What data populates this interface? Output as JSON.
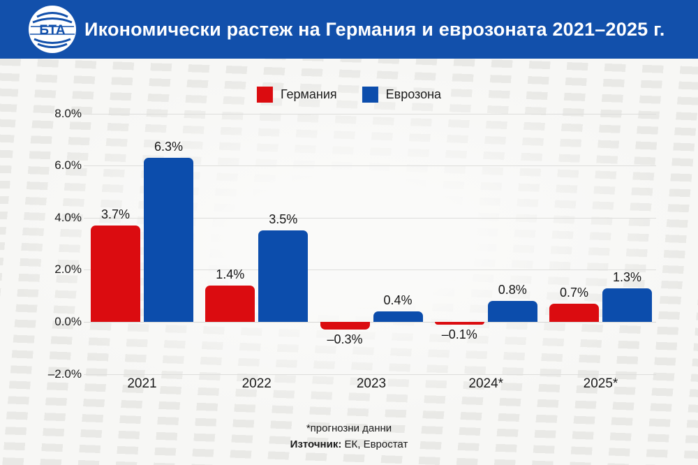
{
  "header": {
    "title": "Икономически растеж на Германия и еврозоната 2021–2025 г.",
    "logo_text": "БТА"
  },
  "legend": {
    "items": [
      {
        "label": "Германия",
        "color": "#db0c10"
      },
      {
        "label": "Еврозона",
        "color": "#0c4dac"
      }
    ]
  },
  "chart_data": {
    "type": "bar",
    "title": "Икономически растеж на Германия и еврозоната 2021–2025 г.",
    "categories": [
      "2021",
      "2022",
      "2023",
      "2024*",
      "2025*"
    ],
    "series": [
      {
        "name": "Германия",
        "color": "#db0c10",
        "values": [
          3.7,
          1.4,
          -0.3,
          -0.1,
          0.7
        ],
        "labels": [
          "3.7%",
          "1.4%",
          "–0.3%",
          "–0.1%",
          "0.7%"
        ]
      },
      {
        "name": "Еврозона",
        "color": "#0c4dac",
        "values": [
          6.3,
          3.5,
          0.4,
          0.8,
          1.3
        ],
        "labels": [
          "6.3%",
          "3.5%",
          "0.4%",
          "0.8%",
          "1.3%"
        ]
      }
    ],
    "y_ticks": [
      {
        "value": 8,
        "label": "8.0%"
      },
      {
        "value": 6,
        "label": "6.0%"
      },
      {
        "value": 4,
        "label": "4.0%"
      },
      {
        "value": 2,
        "label": "2.0%"
      },
      {
        "value": 0,
        "label": "0.0%"
      },
      {
        "value": -2,
        "label": "–2.0%"
      }
    ],
    "ylim": [
      -2,
      8
    ],
    "grid": true,
    "legend_position": "top-center",
    "xlabel": "",
    "ylabel": ""
  },
  "footer": {
    "note": "*прогнозни данни",
    "source_label": "Източник:",
    "source_value": " ЕК, Евростат"
  },
  "colors": {
    "header_bg": "#1250ab",
    "germany": "#db0c10",
    "eurozone": "#0c4dac"
  }
}
